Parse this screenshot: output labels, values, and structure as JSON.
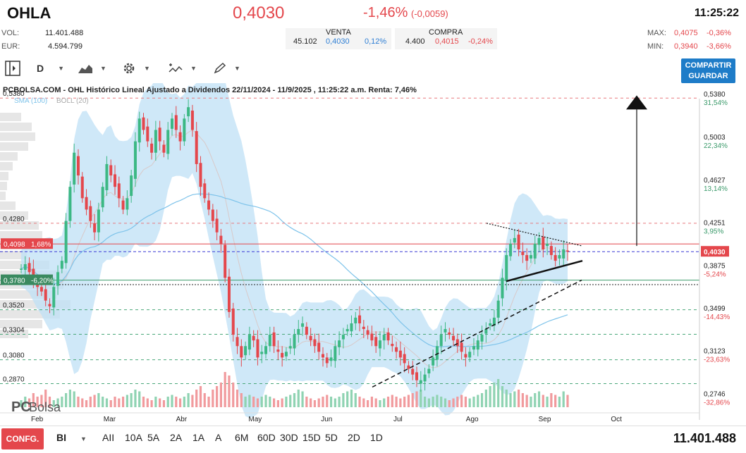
{
  "header": {
    "ticker": "OHLA",
    "price": "0,4030",
    "change_pct": "-1,46%",
    "change_abs": "(-0,0059)",
    "time": "11:25:22",
    "vol_label": "VOL:",
    "vol_value": "11.401.488",
    "eur_label": "EUR:",
    "eur_value": "4.594.799",
    "max_label": "MAX:",
    "max_value": "0,4075",
    "max_pct": "-0,36%",
    "min_label": "MIN:",
    "min_value": "0,3940",
    "min_pct": "-3,66%"
  },
  "quote": {
    "venta_label": "VENTA",
    "venta_qty": "45.102",
    "venta_price": "0,4030",
    "venta_pct": "0,12%",
    "compra_label": "COMPRA",
    "compra_qty": "4.400",
    "compra_price": "0,4015",
    "compra_pct": "-0,24%"
  },
  "toolbar": {
    "period_label": "D",
    "share_line1": "COMPARTIR",
    "share_line2": "GUARDAR"
  },
  "chart_meta": {
    "title": "PCBOLSA.COM - OHL Histórico Lineal Ajustado a Dividendos 22/11/2024 - 11/9/2025 , 11:25:22 a.m. Renta: 7,46%",
    "sma_label": "SMA (100)",
    "boll_label": "BOLL (20)",
    "logo_pc": "PC",
    "logo_bolsa": "Bolsa",
    "colors": {
      "up": "#3cb884",
      "down": "#e4474c",
      "band": "#bfe0f5",
      "sma": "#7ec3ea"
    }
  },
  "chart_data": {
    "type": "candlestick",
    "x_labels": [
      "Feb",
      "Mar",
      "Abr",
      "May",
      "Jun",
      "Jul",
      "Ago",
      "Sep",
      "Oct"
    ],
    "y_range": [
      0.27,
      0.54
    ],
    "right_axis": [
      {
        "price": "0,5380",
        "pct": "31,54%"
      },
      {
        "price": "0,5003",
        "pct": "22,34%"
      },
      {
        "price": "0,4627",
        "pct": "13,14%"
      },
      {
        "price": "0,4251",
        "pct": "3,95%"
      },
      {
        "price": "0,4030",
        "pct": ""
      },
      {
        "price": "0,3875",
        "pct": "-5,24%"
      },
      {
        "price": "0,3499",
        "pct": "-14,43%"
      },
      {
        "price": "0,3123",
        "pct": "-23,63%"
      },
      {
        "price": "0,2746",
        "pct": "-32,86%"
      }
    ],
    "left_levels": [
      {
        "price": "0,5380",
        "tag": ""
      },
      {
        "price": "0,4280",
        "tag": ""
      },
      {
        "price": "0,4098",
        "tag": "1,68%"
      },
      {
        "price": "0,3780",
        "tag": "-6,20%"
      },
      {
        "price": "0,3520",
        "tag": ""
      },
      {
        "price": "0,3304",
        "tag": ""
      },
      {
        "price": "0,3080",
        "tag": ""
      },
      {
        "price": "0,2870",
        "tag": ""
      }
    ],
    "close_series": [
      0.388,
      0.392,
      0.385,
      0.378,
      0.372,
      0.368,
      0.36,
      0.355,
      0.372,
      0.385,
      0.395,
      0.43,
      0.46,
      0.49,
      0.47,
      0.45,
      0.44,
      0.43,
      0.42,
      0.44,
      0.46,
      0.48,
      0.47,
      0.46,
      0.45,
      0.44,
      0.45,
      0.47,
      0.5,
      0.52,
      0.51,
      0.5,
      0.49,
      0.51,
      0.5,
      0.49,
      0.51,
      0.52,
      0.51,
      0.5,
      0.52,
      0.53,
      0.51,
      0.48,
      0.46,
      0.45,
      0.44,
      0.43,
      0.42,
      0.41,
      0.38,
      0.35,
      0.33,
      0.32,
      0.31,
      0.32,
      0.33,
      0.325,
      0.31,
      0.315,
      0.32,
      0.33,
      0.32,
      0.315,
      0.31,
      0.315,
      0.32,
      0.33,
      0.335,
      0.34,
      0.33,
      0.325,
      0.32,
      0.315,
      0.31,
      0.305,
      0.31,
      0.32,
      0.325,
      0.33,
      0.335,
      0.34,
      0.345,
      0.34,
      0.335,
      0.33,
      0.325,
      0.32,
      0.325,
      0.33,
      0.325,
      0.32,
      0.315,
      0.31,
      0.305,
      0.3,
      0.295,
      0.29,
      0.29,
      0.295,
      0.3,
      0.31,
      0.32,
      0.33,
      0.335,
      0.33,
      0.325,
      0.32,
      0.315,
      0.31,
      0.315,
      0.32,
      0.325,
      0.33,
      0.335,
      0.34,
      0.345,
      0.36,
      0.38,
      0.4,
      0.41,
      0.415,
      0.405,
      0.4,
      0.395,
      0.4,
      0.41,
      0.415,
      0.405,
      0.41,
      0.4,
      0.395,
      0.4,
      0.405,
      0.403
    ],
    "volume_series": [
      0.2,
      0.3,
      0.25,
      0.4,
      0.3,
      0.35,
      0.5,
      0.3,
      0.2,
      0.25,
      0.3,
      0.4,
      0.5,
      0.45,
      0.3,
      0.25,
      0.2,
      0.3,
      0.35,
      0.4,
      0.3,
      0.25,
      0.2,
      0.3,
      0.25,
      0.3,
      0.35,
      0.4,
      0.5,
      0.45,
      0.3,
      0.25,
      0.2,
      0.3,
      0.25,
      0.2,
      0.3,
      0.35,
      0.3,
      0.25,
      0.3,
      0.4,
      0.35,
      0.5,
      0.6,
      0.4,
      0.3,
      0.5,
      0.6,
      0.7,
      1.0,
      0.9,
      0.7,
      0.5,
      0.4,
      0.3,
      0.35,
      0.3,
      0.25,
      0.3,
      0.35,
      0.3,
      0.25,
      0.2,
      0.25,
      0.3,
      0.35,
      0.4,
      0.5,
      0.45,
      0.3,
      0.25,
      0.2,
      0.25,
      0.3,
      0.35,
      0.3,
      0.25,
      0.3,
      0.4,
      0.45,
      0.5,
      0.4,
      0.3,
      0.25,
      0.2,
      0.3,
      0.25,
      0.2,
      0.25,
      0.3,
      0.35,
      0.3,
      0.25,
      0.3,
      0.35,
      0.4,
      0.45,
      0.5,
      0.3,
      0.25,
      0.3,
      0.35,
      0.3,
      0.25,
      0.2,
      0.25,
      0.3,
      0.35,
      0.3,
      0.25,
      0.3,
      0.35,
      0.4,
      0.5,
      0.6,
      0.7,
      0.8,
      0.6,
      0.5,
      0.4,
      0.45,
      0.5,
      0.4,
      0.35,
      0.3,
      0.4,
      0.45,
      0.35,
      0.3,
      0.4,
      0.35,
      0.3,
      0.45,
      0.35
    ]
  },
  "periods": [
    "AII",
    "10A",
    "5A",
    "2A",
    "1A",
    "A",
    "6M",
    "60D",
    "30D",
    "15D",
    "5D",
    "2D",
    "1D"
  ],
  "bottom": {
    "config_label": "CONFG.",
    "type_label": "BI",
    "volume_total": "11.401.488"
  }
}
